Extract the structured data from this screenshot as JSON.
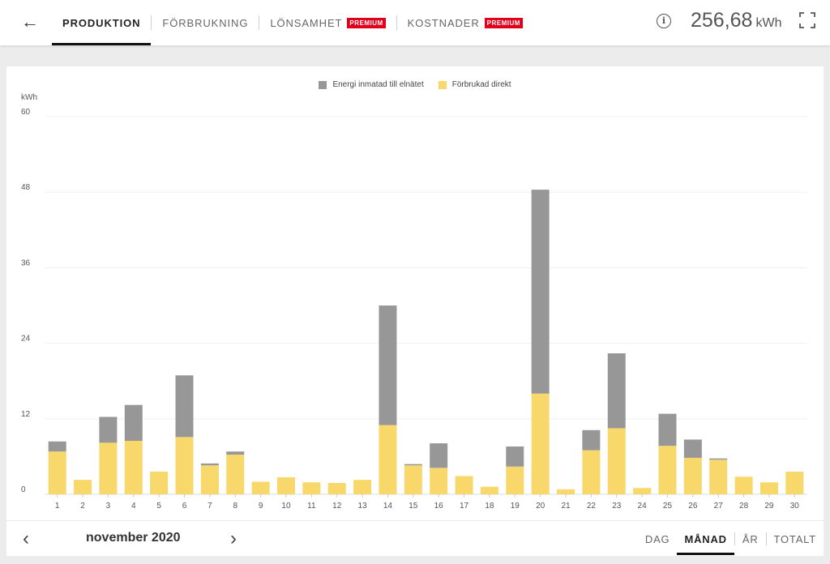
{
  "nav": {
    "tabs": [
      {
        "label": "PRODUKTION",
        "active": true
      },
      {
        "label": "FÖRBRUKNING",
        "active": false
      },
      {
        "label": "LÖNSAMHET",
        "badge": "PREMIUM",
        "active": false
      },
      {
        "label": "KOSTNADER",
        "badge": "PREMIUM",
        "active": false
      }
    ],
    "total_value": "256,68",
    "total_unit": "kWh"
  },
  "icons": {
    "back": "back-arrow-icon",
    "info": "info-icon",
    "fullscreen": "fullscreen-icon",
    "prev": "chevron-left-icon",
    "next": "chevron-right-icon"
  },
  "colors": {
    "grid_export": "#979797",
    "direct_use": "#f8d86b",
    "premium_badge": "#e3001b"
  },
  "footer": {
    "period": "november 2020",
    "views": [
      {
        "label": "DAG",
        "active": false
      },
      {
        "label": "MÅNAD",
        "active": true
      },
      {
        "label": "ÅR",
        "active": false
      },
      {
        "label": "TOTALT",
        "active": false
      }
    ]
  },
  "chart_data": {
    "type": "bar",
    "stacked": true,
    "ylabel": "kWh",
    "ylim": [
      0,
      60
    ],
    "yticks": [
      0,
      12,
      24,
      36,
      48,
      60
    ],
    "categories": [
      "1",
      "2",
      "3",
      "4",
      "5",
      "6",
      "7",
      "8",
      "9",
      "10",
      "11",
      "12",
      "13",
      "14",
      "15",
      "16",
      "17",
      "18",
      "19",
      "20",
      "21",
      "22",
      "23",
      "24",
      "25",
      "26",
      "27",
      "28",
      "29",
      "30"
    ],
    "legend_position": "top-center",
    "series": [
      {
        "name": "Förbrukad direkt",
        "color": "#f8d86b",
        "values": [
          6.8,
          2.3,
          8.2,
          8.5,
          3.6,
          9.1,
          4.6,
          6.3,
          2.0,
          2.7,
          1.9,
          1.8,
          2.3,
          11.0,
          4.6,
          4.2,
          2.9,
          1.2,
          4.4,
          16.0,
          0.8,
          7.0,
          10.5,
          1.0,
          7.7,
          5.8,
          5.5,
          2.8,
          1.9,
          3.6
        ]
      },
      {
        "name": "Energi inmatad till elnätet",
        "color": "#979797",
        "values": [
          1.6,
          0,
          4.1,
          5.7,
          0,
          9.8,
          0.3,
          0.5,
          0,
          0,
          0,
          0,
          0,
          19.0,
          0.2,
          3.9,
          0,
          0,
          3.2,
          32.4,
          0,
          3.2,
          11.9,
          0,
          5.1,
          2.9,
          0.2,
          0,
          0,
          0
        ]
      }
    ]
  }
}
